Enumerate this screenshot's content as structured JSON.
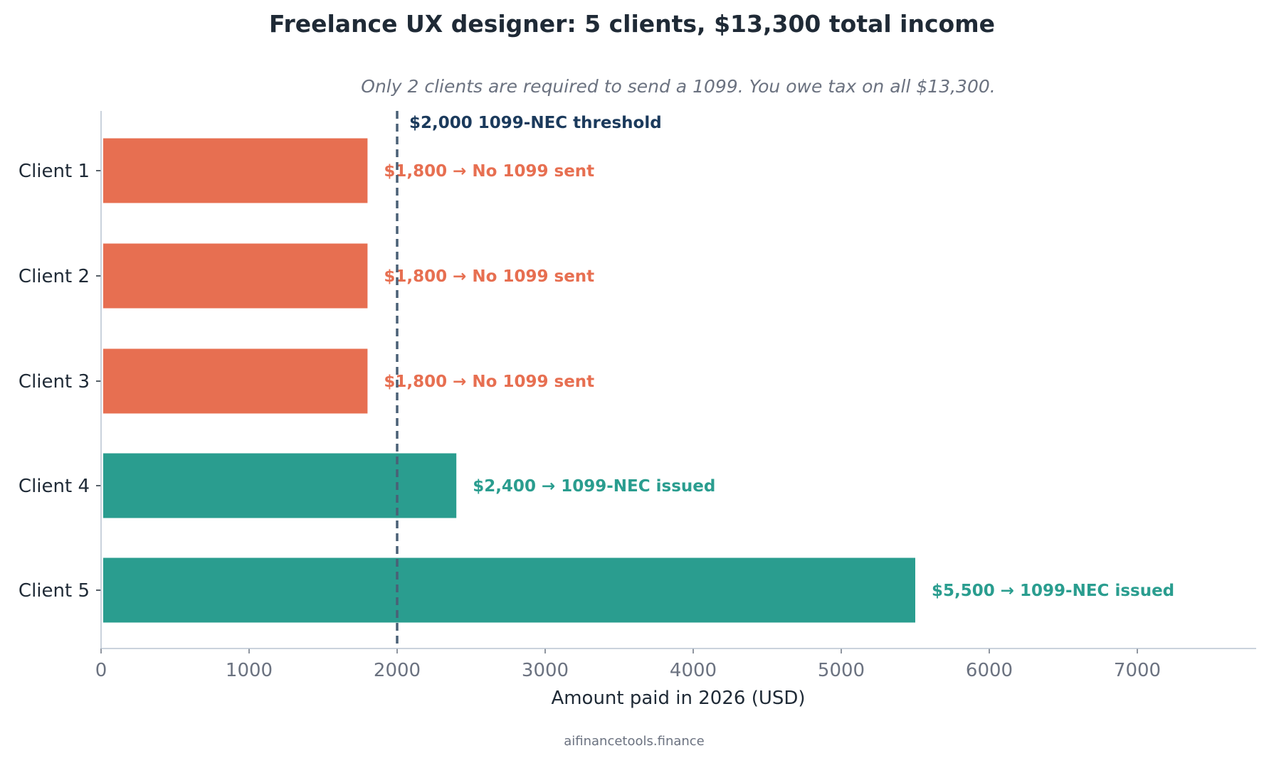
{
  "chart_data": {
    "type": "bar",
    "orientation": "horizontal",
    "title": "Freelance UX designer: 5 clients, $13,300 total income",
    "subtitle": "Only 2 clients are required to send a 1099. You owe tax on all $13,300.",
    "xlabel": "Amount paid in 2026 (USD)",
    "ylabel": "",
    "xlim": [
      0,
      7800
    ],
    "xticks": [
      0,
      1000,
      2000,
      3000,
      4000,
      5000,
      6000,
      7000
    ],
    "grid": false,
    "categories": [
      "Client 1",
      "Client 2",
      "Client 3",
      "Client 4",
      "Client 5"
    ],
    "values": [
      1800,
      1800,
      1800,
      2400,
      5500
    ],
    "bar_labels": [
      "$1,800  →  No 1099 sent",
      "$1,800  →  No 1099 sent",
      "$1,800  →  No 1099 sent",
      "$2,400  →  1099-NEC issued",
      "$5,500  →  1099-NEC issued"
    ],
    "bar_colors": [
      "#e76f51",
      "#e76f51",
      "#e76f51",
      "#2a9d8f",
      "#2a9d8f"
    ],
    "threshold": {
      "value": 2000,
      "label": "$2,000  1099-NEC threshold",
      "color": "#4a6076",
      "label_color": "#1b3a5c"
    },
    "footer": "aifinancetools.finance"
  },
  "colors": {
    "below_threshold": "#e76f51",
    "above_threshold": "#2a9d8f",
    "axis": "#b8c4d0",
    "title": "#1f2a36",
    "muted": "#6b7280"
  }
}
